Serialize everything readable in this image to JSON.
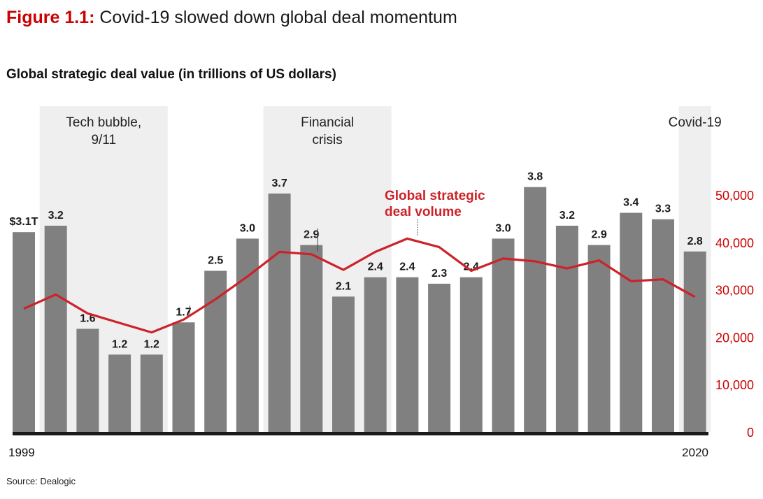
{
  "figure": {
    "label": "Figure 1.1:",
    "title": "Covid-19 slowed down global deal momentum"
  },
  "subtitle": "Global strategic deal value (in trillions of US dollars)",
  "source": "Source: Dealogic",
  "colors": {
    "bar": "#808080",
    "line": "#cc2229",
    "accent": "#cc0000",
    "shade": "#efefef",
    "axis": "#1a1a1a"
  },
  "chart_data": {
    "type": "bar",
    "x": [
      1999,
      2000,
      2001,
      2002,
      2003,
      2004,
      2005,
      2006,
      2007,
      2008,
      2009,
      2010,
      2011,
      2012,
      2013,
      2014,
      2015,
      2016,
      2017,
      2018,
      2019,
      2020
    ],
    "x_tick_labels": {
      "first": "1999",
      "last": "2020"
    },
    "series": [
      {
        "axis": "left",
        "values": [
          3.1,
          3.2,
          1.6,
          1.2,
          1.2,
          1.7,
          2.5,
          3.0,
          3.7,
          2.9,
          2.1,
          2.4,
          2.4,
          2.3,
          2.4,
          3.0,
          3.8,
          3.2,
          2.9,
          3.4,
          3.3,
          2.8
        ],
        "data_labels": [
          "$3.1T",
          "3.2",
          "1.6",
          "1.2",
          "1.2",
          "1.7",
          "2.5",
          "3.0",
          "3.7",
          "2.9",
          "2.1",
          "2.4",
          "2.4",
          "2.3",
          "2.4",
          "3.0",
          "3.8",
          "3.2",
          "2.9",
          "3.4",
          "3.3",
          "2.8"
        ]
      },
      {
        "name": "Global strategic deal volume",
        "type": "line",
        "axis": "right",
        "values": [
          26000,
          29000,
          25000,
          23000,
          21000,
          23700,
          28000,
          32800,
          38000,
          37500,
          34200,
          38000,
          40800,
          39000,
          34000,
          36600,
          36000,
          34500,
          36200,
          31800,
          32200,
          28500
        ]
      }
    ],
    "y_left_range": [
      0,
      5.5
    ],
    "right_axis": {
      "ticks": [
        "0",
        "10,000",
        "20,000",
        "30,000",
        "40,000",
        "50,000"
      ],
      "range": [
        0,
        55000
      ]
    },
    "shaded_periods": [
      {
        "label_lines": [
          "Tech bubble,",
          "9/11"
        ],
        "start": 2000,
        "end": 2003
      },
      {
        "label_lines": [
          "Financial",
          "crisis"
        ],
        "start": 2007,
        "end": 2010
      },
      {
        "label_lines": [
          "Covid-19"
        ],
        "start": 2020,
        "end": 2020
      }
    ],
    "line_label_lines": [
      "Global strategic",
      "deal volume"
    ],
    "grid": false
  }
}
